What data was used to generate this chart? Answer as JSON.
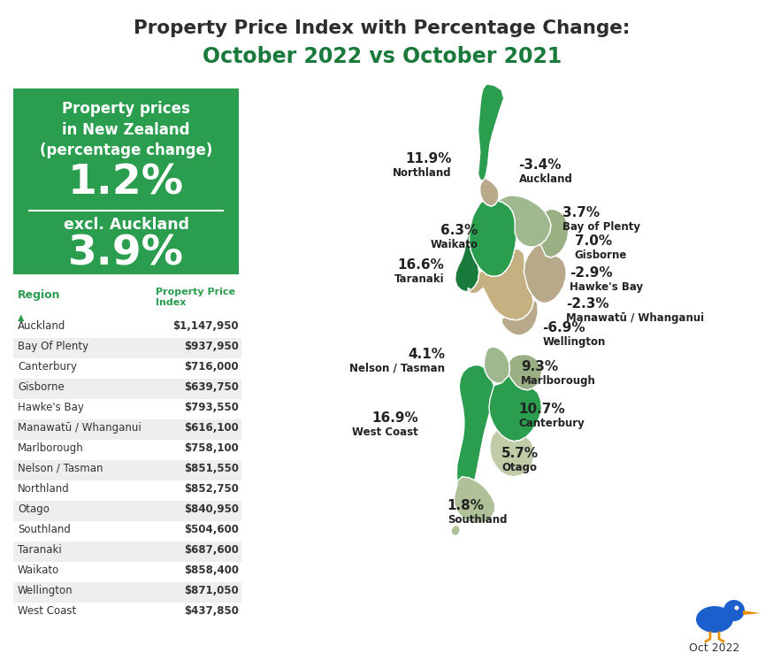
{
  "title_line1": "Property Price Index with Percentage Change:",
  "title_line2": "October 2022 vs October 2021",
  "title_color": "#2d2d2d",
  "title_green_color": "#1a7a3c",
  "box_bg_color": "#2a9d4e",
  "box_text_color": "#ffffff",
  "box_title": "Property prices\nin New Zealand\n(percentage change)",
  "box_value1": "1.2%",
  "box_label2": "excl. Auckland",
  "box_value2": "3.9%",
  "table_header_color": "#2a9d4e",
  "table_alt_color": "#eeeeee",
  "table_regions": [
    "Auckland",
    "Bay Of Plenty",
    "Canterbury",
    "Gisborne",
    "Hawke's Bay",
    "Manawatū / Whanganui",
    "Marlborough",
    "Nelson / Tasman",
    "Northland",
    "Otago",
    "Southland",
    "Taranaki",
    "Waikato",
    "Wellington",
    "West Coast"
  ],
  "table_prices": [
    "$1,147,950",
    "$937,950",
    "$716,000",
    "$639,750",
    "$793,550",
    "$616,100",
    "$758,100",
    "$851,550",
    "$852,750",
    "$840,950",
    "$504,600",
    "$687,600",
    "$858,400",
    "$871,050",
    "$437,850"
  ],
  "region_colors": {
    "Northland": "#2a9d4e",
    "Auckland": "#b8a98a",
    "Bay of Plenty": "#a0b890",
    "Waikato": "#2a9d4e",
    "Gisborne": "#9aaf84",
    "Taranaki": "#1a7a3c",
    "Hawkes Bay": "#b8a98a",
    "Manawatu": "#c4b080",
    "Wellington": "#b8a98a",
    "Nelson": "#a0b890",
    "Marlborough": "#9aaf84",
    "West Coast": "#2a9d4e",
    "Canterbury": "#2a9d4e",
    "Otago": "#c0cca8",
    "Southland": "#b0c098"
  },
  "footer_text": "Oct 2022",
  "bg_color": "#ffffff"
}
